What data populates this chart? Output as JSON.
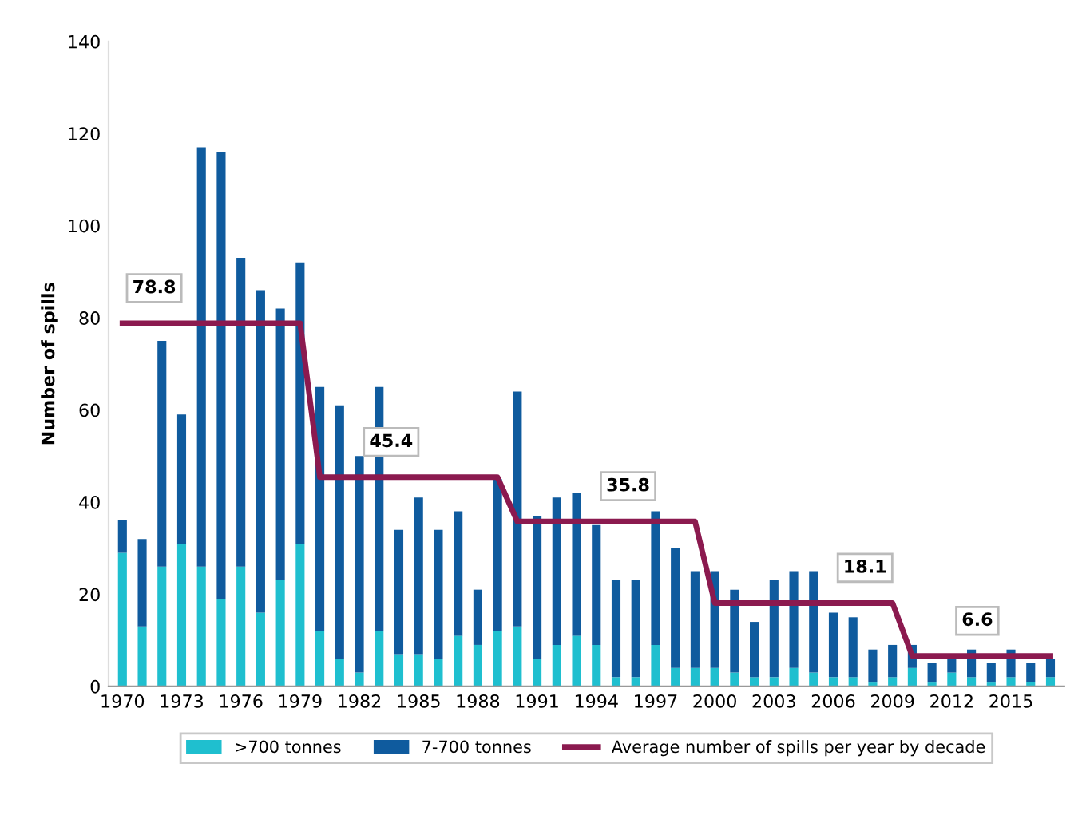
{
  "chart_data": {
    "type": "bar",
    "stacked": true,
    "ylabel": "Number of spills",
    "categories": [
      "1970",
      null,
      null,
      "1973",
      null,
      null,
      "1976",
      null,
      null,
      "1979",
      null,
      null,
      "1982",
      null,
      null,
      "1985",
      null,
      null,
      "1988",
      null,
      null,
      "1991",
      null,
      null,
      "1994",
      null,
      null,
      "1997",
      null,
      null,
      "2000",
      null,
      null,
      "2003",
      null,
      null,
      "2006",
      null,
      null,
      "2009",
      null,
      null,
      "2012",
      null,
      null,
      "2015",
      null,
      null
    ],
    "series": [
      {
        "name": ">700 tonnes",
        "color": "#1fbfcf",
        "values": [
          29,
          13,
          26,
          31,
          26,
          19,
          26,
          16,
          23,
          31,
          12,
          6,
          3,
          12,
          7,
          7,
          6,
          11,
          9,
          12,
          13,
          6,
          9,
          11,
          9,
          2,
          2,
          9,
          4,
          4,
          4,
          3,
          2,
          2,
          4,
          3,
          2,
          2,
          1,
          2,
          4,
          1,
          3,
          2,
          1,
          2,
          1,
          2
        ]
      },
      {
        "name": "7-700 tonnes",
        "color": "#0f5b9e",
        "values": [
          7,
          19,
          49,
          28,
          91,
          97,
          67,
          70,
          59,
          61,
          53,
          55,
          47,
          53,
          27,
          34,
          28,
          27,
          12,
          33,
          51,
          31,
          32,
          31,
          26,
          21,
          21,
          29,
          26,
          21,
          21,
          18,
          12,
          21,
          21,
          22,
          14,
          13,
          7,
          7,
          5,
          4,
          4,
          6,
          4,
          6,
          4,
          4
        ]
      },
      {
        "name": "Average number of spills per year by decade",
        "type": "line",
        "color": "#8b1a4f",
        "values": [
          78.8,
          78.8,
          78.8,
          78.8,
          78.8,
          78.8,
          78.8,
          78.8,
          78.8,
          78.8,
          45.4,
          45.4,
          45.4,
          45.4,
          45.4,
          45.4,
          45.4,
          45.4,
          45.4,
          45.4,
          35.8,
          35.8,
          35.8,
          35.8,
          35.8,
          35.8,
          35.8,
          35.8,
          35.8,
          35.8,
          18.1,
          18.1,
          18.1,
          18.1,
          18.1,
          18.1,
          18.1,
          18.1,
          18.1,
          18.1,
          6.6,
          6.6,
          6.6,
          6.6,
          6.6,
          6.6,
          6.6,
          6.6
        ]
      }
    ],
    "annotations": [
      {
        "text": "78.8",
        "x": "1970",
        "y": 78.8
      },
      {
        "text": "45.4",
        "x": "1982",
        "y": 45.4
      },
      {
        "text": "35.8",
        "x": "1994",
        "y": 35.8
      },
      {
        "text": "18.1",
        "x": "2006",
        "y": 18.1
      },
      {
        "text": "6.6",
        "x": "2012",
        "y": 6.6
      }
    ],
    "ylim": [
      0,
      140
    ],
    "yticks": [
      0,
      20,
      40,
      60,
      80,
      100,
      120,
      140
    ],
    "grid": false,
    "legend": "bottom",
    "marker": "none",
    "line_style": "solid"
  }
}
